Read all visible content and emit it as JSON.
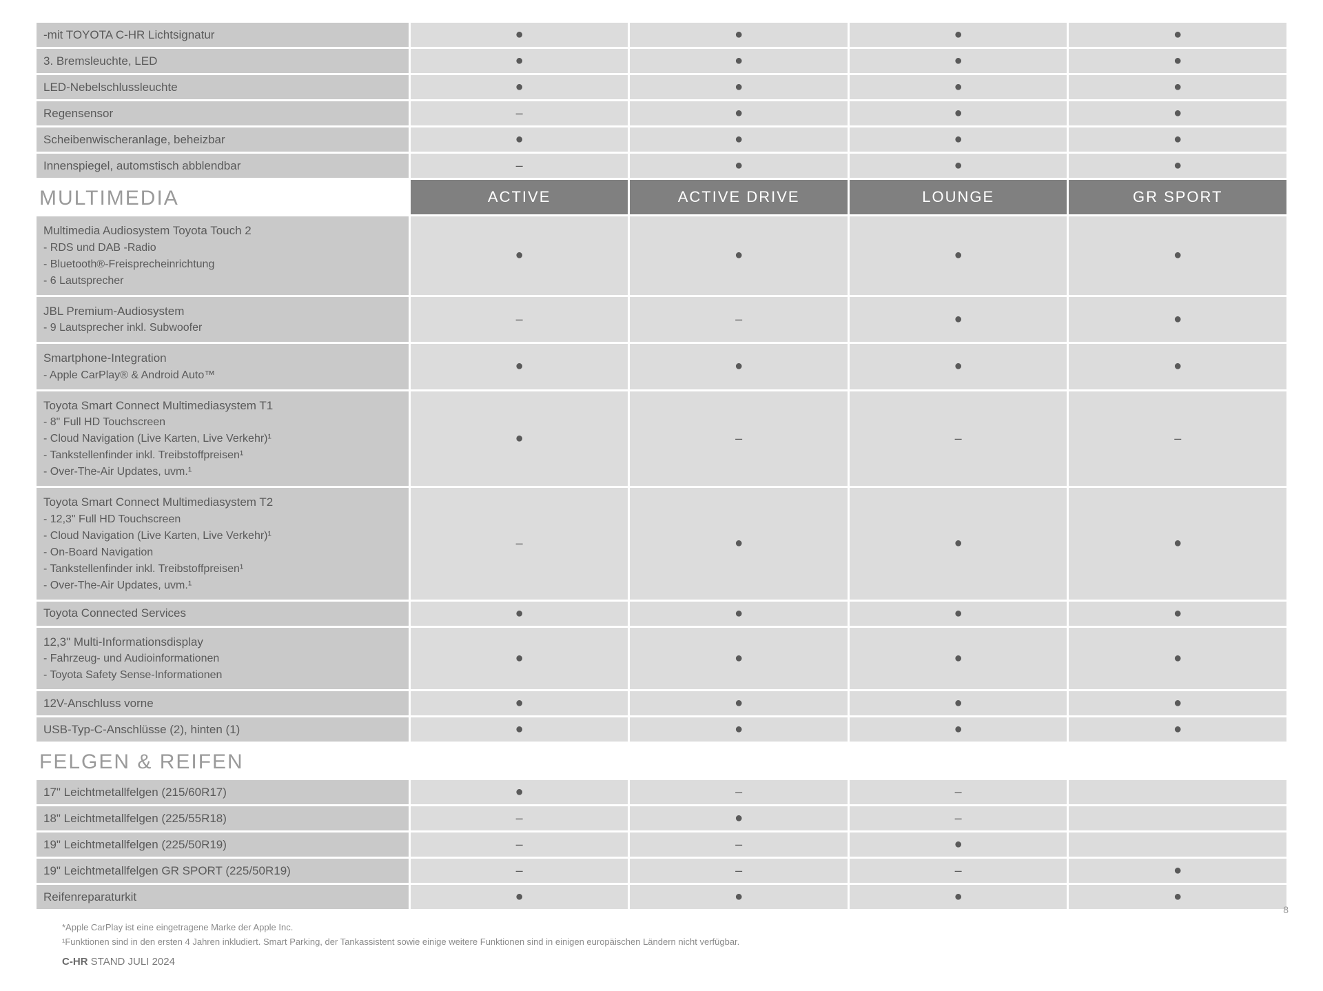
{
  "symbols": {
    "dot": "●",
    "dash": "–"
  },
  "colors": {
    "feature_bg": "#c9c9c9",
    "value_bg": "#dcdcdc",
    "header_bg": "#808080",
    "header_text": "#ffffff",
    "section_text": "#9a9a9a",
    "body_text": "#5a5a5a"
  },
  "columns": [
    "ACTIVE",
    "ACTIVE DRIVE",
    "LOUNGE",
    "GR SPORT"
  ],
  "sections": [
    {
      "show_header": false,
      "rows": [
        {
          "label": "-mit TOYOTA C-HR Lichtsignatur",
          "values": [
            "dot",
            "dot",
            "dot",
            "dot"
          ]
        },
        {
          "label": "3. Bremsleuchte, LED",
          "values": [
            "dot",
            "dot",
            "dot",
            "dot"
          ]
        },
        {
          "label": "LED-Nebelschlussleuchte",
          "values": [
            "dot",
            "dot",
            "dot",
            "dot"
          ]
        },
        {
          "label": "Regensensor",
          "values": [
            "dash",
            "dot",
            "dot",
            "dot"
          ]
        },
        {
          "label": "Scheibenwischeranlage, beheizbar",
          "values": [
            "dot",
            "dot",
            "dot",
            "dot"
          ]
        },
        {
          "label": "Innenspiegel, automstisch abblendbar",
          "values": [
            "dash",
            "dot",
            "dot",
            "dot"
          ]
        }
      ]
    },
    {
      "title": "MULTIMEDIA",
      "show_header": true,
      "header_cols": true,
      "rows": [
        {
          "label": "Multimedia Audiosystem Toyota Touch 2",
          "sublines": [
            "- RDS und DAB -Radio",
            "- Bluetooth®-Freisprecheinrichtung",
            "- 6 Lautsprecher"
          ],
          "values": [
            "dot",
            "dot",
            "dot",
            "dot"
          ]
        },
        {
          "label": "JBL Premium-Audiosystem",
          "sublines": [
            "- 9 Lautsprecher inkl. Subwoofer"
          ],
          "values": [
            "dash",
            "dash",
            "dot",
            "dot"
          ]
        },
        {
          "label": "Smartphone-Integration",
          "sublines": [
            "- Apple CarPlay® & Android Auto™"
          ],
          "values": [
            "dot",
            "dot",
            "dot",
            "dot"
          ]
        },
        {
          "label": "Toyota Smart Connect Multimediasystem T1",
          "sublines": [
            "- 8\" Full HD Touchscreen",
            "- Cloud Navigation (Live Karten, Live Verkehr)¹",
            "- Tankstellenfinder inkl. Treibstoffpreisen¹",
            "- Over-The-Air Updates, uvm.¹"
          ],
          "values": [
            "dot",
            "dash",
            "dash",
            "dash"
          ]
        },
        {
          "label": "Toyota Smart Connect Multimediasystem T2",
          "sublines": [
            "- 12,3\" Full HD Touchscreen",
            "- Cloud Navigation (Live Karten, Live Verkehr)¹",
            "- On-Board Navigation",
            "- Tankstellenfinder inkl. Treibstoffpreisen¹",
            "- Over-The-Air Updates, uvm.¹"
          ],
          "values": [
            "dash",
            "dot",
            "dot",
            "dot"
          ]
        },
        {
          "label": "Toyota Connected Services",
          "values": [
            "dot",
            "dot",
            "dot",
            "dot"
          ]
        },
        {
          "label": "12,3\" Multi-Informationsdisplay",
          "sublines": [
            "- Fahrzeug- und Audioinformationen",
            "- Toyota Safety Sense-Informationen"
          ],
          "values": [
            "dot",
            "dot",
            "dot",
            "dot"
          ]
        },
        {
          "label": "12V-Anschluss vorne",
          "values": [
            "dot",
            "dot",
            "dot",
            "dot"
          ]
        },
        {
          "label": "USB-Typ-C-Anschlüsse (2), hinten (1)",
          "values": [
            "dot",
            "dot",
            "dot",
            "dot"
          ]
        }
      ]
    },
    {
      "title": "FELGEN & REIFEN",
      "show_header": true,
      "header_cols": false,
      "rows": [
        {
          "label": "17\" Leichtmetallfelgen (215/60R17)",
          "values": [
            "dot",
            "dash",
            "dash",
            ""
          ]
        },
        {
          "label": "18\" Leichtmetallfelgen (225/55R18)",
          "values": [
            "dash",
            "dot",
            "dash",
            ""
          ]
        },
        {
          "label": "19\" Leichtmetallfelgen (225/50R19)",
          "values": [
            "dash",
            "dash",
            "dot",
            ""
          ]
        },
        {
          "label": "19\" Leichtmetallfelgen GR SPORT (225/50R19)",
          "values": [
            "dash",
            "dash",
            "dash",
            "dot"
          ]
        },
        {
          "label": "Reifenreparaturkit",
          "values": [
            "dot",
            "dot",
            "dot",
            "dot"
          ]
        }
      ]
    }
  ],
  "footer": {
    "note1": "*Apple CarPlay ist eine eingetragene Marke der Apple Inc.",
    "note2": "¹Funktionen sind in den ersten 4 Jahren inkludiert. Smart Parking, der Tankassistent sowie einige weitere Funktionen sind in einigen europäischen Ländern nicht verfügbar.",
    "brand_bold": "C-HR",
    "brand_rest": " STAND JULI 2024",
    "page_number": "8"
  }
}
